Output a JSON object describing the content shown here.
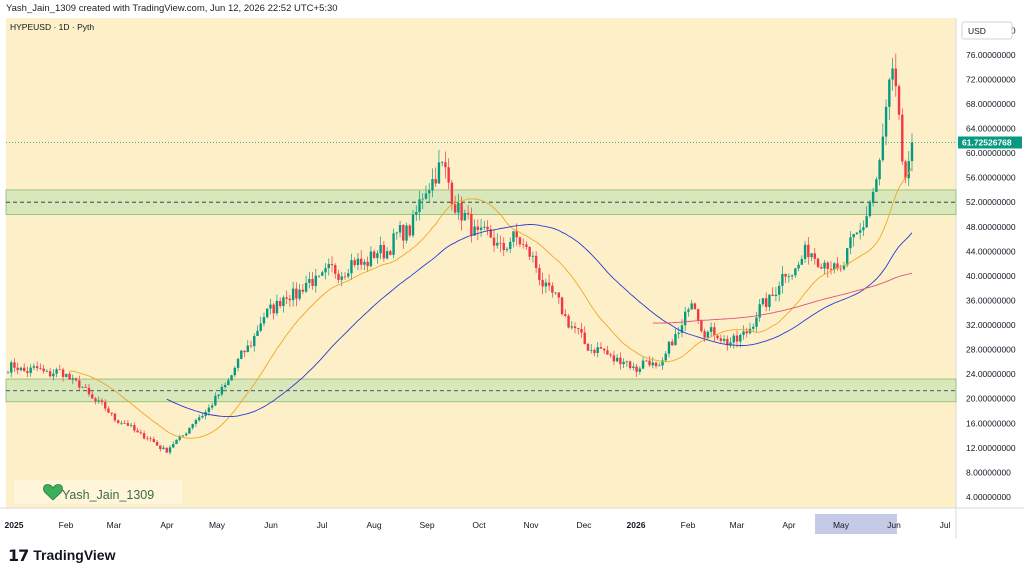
{
  "header": {
    "text": "Yash_Jain_1309 created with TradingView.com, Jun 12, 2026 22:52 UTC+5:30"
  },
  "symbol_line": "HYPEUSD · 1D · Pyth",
  "currency_label": "USD",
  "watermark": {
    "icon": "green-heart-icon",
    "text": "Yash_Jain_1309"
  },
  "footer": {
    "logo_glyph": "17",
    "brand": "TradingView"
  },
  "colors": {
    "plot_bg": "#fdf0c8",
    "zone_fill": "#c9e4b4",
    "zone_border": "#8fb86b",
    "up": "#089981",
    "down": "#f23645",
    "ma_fast": "#f2a623",
    "ma_mid": "#2a3bd6",
    "ma_slow": "#e05080",
    "price_tag": "#089981",
    "may_highlight": "#c5cae6"
  },
  "chart_data": {
    "type": "candlestick",
    "title": "HYPEUSD · 1D · Pyth",
    "ylabel": "USD",
    "ylim": [
      2.2,
      82
    ],
    "y_ticks": [
      "80.00000000",
      "76.00000000",
      "72.00000000",
      "68.00000000",
      "64.00000000",
      "60.00000000",
      "56.00000000",
      "52.00000000",
      "48.00000000",
      "44.00000000",
      "40.00000000",
      "36.00000000",
      "32.00000000",
      "28.00000000",
      "24.00000000",
      "20.00000000",
      "16.00000000",
      "12.00000000",
      "8.00000000",
      "4.00000000"
    ],
    "x_labels": [
      "2025",
      "Feb",
      "Mar",
      "Apr",
      "May",
      "Jun",
      "Jul",
      "Aug",
      "Sep",
      "Oct",
      "Nov",
      "Dec",
      "2026",
      "Feb",
      "Mar",
      "Apr",
      "May",
      "Jun",
      "Jul"
    ],
    "current_price_label": "61.72526768",
    "current_price": 61.725,
    "zones": [
      {
        "from": 50.0,
        "to": 54.0,
        "midline": 52.0
      },
      {
        "from": 19.5,
        "to": 23.2,
        "midline": 21.3
      }
    ],
    "close_anchors": [
      [
        "2025",
        25.0
      ],
      [
        "Feb",
        24.0
      ],
      [
        "Mar",
        17.0
      ],
      [
        "Apr",
        11.5
      ],
      [
        "May",
        20.0
      ],
      [
        "Jun",
        35.0
      ],
      [
        "Jul",
        40.0
      ],
      [
        "Aug",
        43.0
      ],
      [
        "Sep",
        50.0
      ],
      [
        "Oct",
        47.0
      ],
      [
        "Nov",
        42.0
      ],
      [
        "Dec",
        29.0
      ],
      [
        "2026",
        25.0
      ],
      [
        "Feb",
        32.0
      ],
      [
        "Mar",
        29.0
      ],
      [
        "Apr",
        41.0
      ],
      [
        "May",
        41.0
      ],
      [
        "Jun",
        60.0
      ]
    ],
    "ma_lines": [
      {
        "name": "ma_fast",
        "period": 20
      },
      {
        "name": "ma_mid",
        "period": 50
      },
      {
        "name": "ma_slow",
        "period": 200
      }
    ]
  }
}
